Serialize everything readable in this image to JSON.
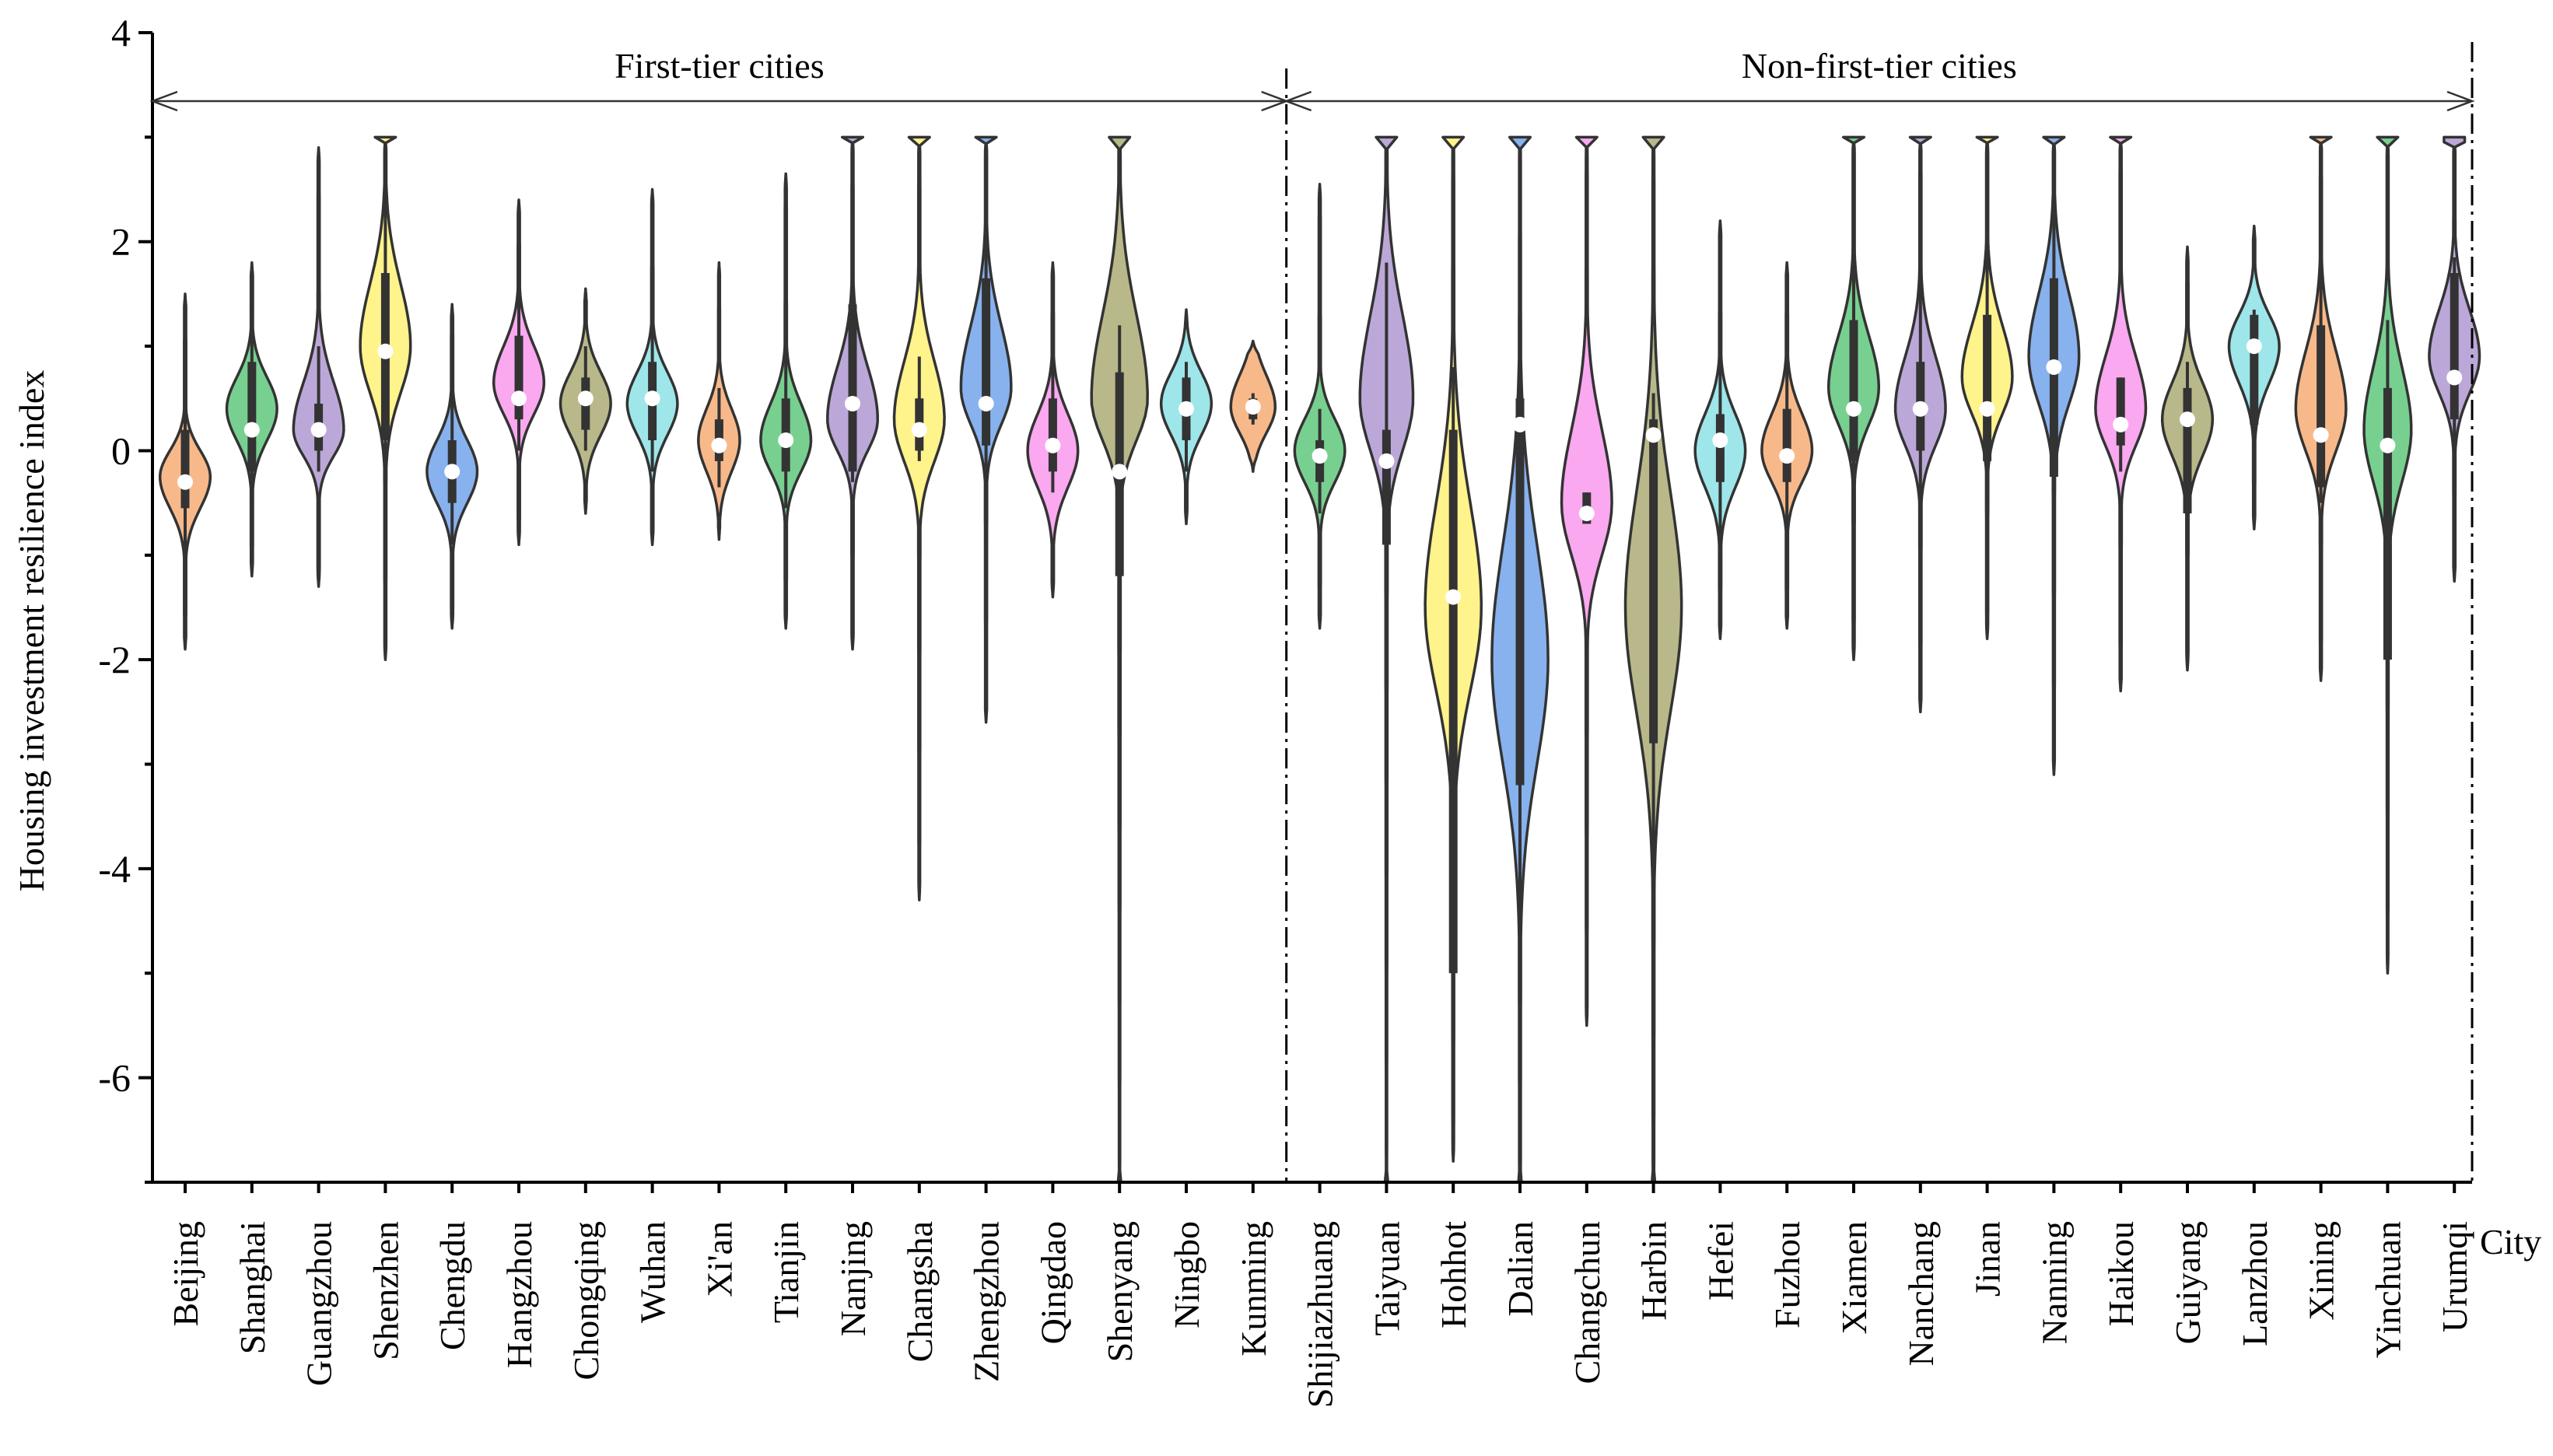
{
  "chart_data": {
    "type": "violin",
    "ylabel": "Housing investment resilience index",
    "xlabel": "City",
    "ylim": [
      -7,
      4
    ],
    "yticks": [
      4,
      2,
      0,
      -2,
      -4,
      -6
    ],
    "ytick_labels": [
      "4",
      "2",
      "0",
      "-2",
      "-4",
      "-6"
    ],
    "groups": [
      {
        "label": "First-tier cities",
        "first": 0,
        "last": 16
      },
      {
        "label": "Non-first-tier cities",
        "first": 17,
        "last": 34
      }
    ],
    "cities": [
      {
        "name": "Beijing",
        "color": "#F8B98A",
        "min": -1.9,
        "max": 1.5,
        "q1": -0.55,
        "q3": 0.2,
        "median": -0.3,
        "whisker": [
          -1.1,
          0.7
        ],
        "peak": -0.25,
        "w": 0.85,
        "wu": 0.25,
        "wl": 0.3
      },
      {
        "name": "Shanghai",
        "color": "#78D090",
        "min": -1.2,
        "max": 1.8,
        "q1": -0.2,
        "q3": 0.85,
        "median": 0.2,
        "whisker": [
          -0.5,
          1.4
        ],
        "peak": 0.4,
        "w": 0.85,
        "wu": 0.3,
        "wl": 0.3
      },
      {
        "name": "Guangzhou",
        "color": "#BCA8D8",
        "min": -1.3,
        "max": 2.9,
        "q1": 0.0,
        "q3": 0.45,
        "median": 0.2,
        "whisker": [
          -0.2,
          1.0
        ],
        "peak": 0.2,
        "w": 0.85,
        "wu": 0.45,
        "wl": 0.25
      },
      {
        "name": "Shenzhen",
        "color": "#FFF38C",
        "min": -2.0,
        "max": 3.0,
        "q1": 0.1,
        "q3": 1.7,
        "median": 0.95,
        "whisker": [
          -0.3,
          2.5
        ],
        "peak": 1.0,
        "w": 0.85,
        "wu": 0.6,
        "wl": 0.45
      },
      {
        "name": "Chengdu",
        "color": "#88B2EE",
        "min": -1.7,
        "max": 1.4,
        "q1": -0.5,
        "q3": 0.1,
        "median": -0.2,
        "whisker": [
          -0.9,
          0.6
        ],
        "peak": -0.2,
        "w": 0.85,
        "wu": 0.3,
        "wl": 0.3
      },
      {
        "name": "Hangzhou",
        "color": "#FAA8F0",
        "min": -0.9,
        "max": 2.4,
        "q1": 0.3,
        "q3": 1.1,
        "median": 0.5,
        "whisker": [
          0.0,
          1.6
        ],
        "peak": 0.65,
        "w": 0.85,
        "wu": 0.35,
        "wl": 0.3
      },
      {
        "name": "Chongqing",
        "color": "#B8B88A",
        "min": -0.6,
        "max": 1.55,
        "q1": 0.2,
        "q3": 0.7,
        "median": 0.5,
        "whisker": [
          0.0,
          1.0
        ],
        "peak": 0.45,
        "w": 0.85,
        "wu": 0.3,
        "wl": 0.3
      },
      {
        "name": "Wuhan",
        "color": "#9EE6EA",
        "min": -0.9,
        "max": 2.5,
        "q1": 0.1,
        "q3": 0.85,
        "median": 0.5,
        "whisker": [
          -0.2,
          1.7
        ],
        "peak": 0.45,
        "w": 0.85,
        "wu": 0.3,
        "wl": 0.3
      },
      {
        "name": "Xi'an",
        "color": "#F8B98A",
        "min": -0.85,
        "max": 1.8,
        "q1": -0.1,
        "q3": 0.3,
        "median": 0.05,
        "whisker": [
          -0.35,
          0.6
        ],
        "peak": 0.1,
        "w": 0.7,
        "wu": 0.3,
        "wl": 0.3
      },
      {
        "name": "Tianjin",
        "color": "#78D090",
        "min": -1.7,
        "max": 2.65,
        "q1": -0.2,
        "q3": 0.5,
        "median": 0.1,
        "whisker": [
          -0.55,
          1.1
        ],
        "peak": 0.1,
        "w": 0.85,
        "wu": 0.35,
        "wl": 0.3
      },
      {
        "name": "Nanjing",
        "color": "#BCA8D8",
        "min": -1.9,
        "max": 3.0,
        "q1": -0.2,
        "q3": 1.4,
        "median": 0.45,
        "whisker": [
          -0.3,
          2.05
        ],
        "peak": 0.3,
        "w": 0.85,
        "wu": 0.5,
        "wl": 0.3
      },
      {
        "name": "Changsha",
        "color": "#FFF38C",
        "min": -4.3,
        "max": 3.0,
        "q1": 0.0,
        "q3": 0.5,
        "median": 0.2,
        "whisker": [
          -0.1,
          0.9
        ],
        "peak": 0.3,
        "w": 0.85,
        "wu": 0.55,
        "wl": 0.4
      },
      {
        "name": "Zhengzhou",
        "color": "#88B2EE",
        "min": -2.6,
        "max": 3.0,
        "q1": 0.05,
        "q3": 1.65,
        "median": 0.45,
        "whisker": [
          -0.9,
          2.3
        ],
        "peak": 0.6,
        "w": 0.85,
        "wu": 0.6,
        "wl": 0.35
      },
      {
        "name": "Qingdao",
        "color": "#FAA8F0",
        "min": -1.4,
        "max": 1.8,
        "q1": -0.2,
        "q3": 0.5,
        "median": 0.05,
        "whisker": [
          -0.4,
          0.9
        ],
        "peak": 0.0,
        "w": 0.85,
        "wu": 0.35,
        "wl": 0.35
      },
      {
        "name": "Shenyang",
        "color": "#B8B88A",
        "min": -7.0,
        "max": 3.0,
        "q1": -1.2,
        "q3": 0.75,
        "median": -0.2,
        "whisker": [
          -1.2,
          1.2
        ],
        "peak": 0.5,
        "w": 0.95,
        "wu": 0.8,
        "wl": 0.4
      },
      {
        "name": "Ningbo",
        "color": "#9EE6EA",
        "min": -0.7,
        "max": 1.35,
        "q1": 0.1,
        "q3": 0.7,
        "median": 0.4,
        "whisker": [
          -0.2,
          0.85
        ],
        "peak": 0.45,
        "w": 0.85,
        "wu": 0.3,
        "wl": 0.3
      },
      {
        "name": "Kunming",
        "color": "#F8B98A",
        "min": -0.2,
        "max": 1.05,
        "q1": 0.3,
        "q3": 0.5,
        "median": 0.42,
        "whisker": [
          0.25,
          0.55
        ],
        "peak": 0.42,
        "w": 0.75,
        "wu": 0.3,
        "wl": 0.25
      },
      {
        "name": "Shijiazhuang",
        "color": "#78D090",
        "min": -1.7,
        "max": 2.55,
        "q1": -0.3,
        "q3": 0.1,
        "median": -0.05,
        "whisker": [
          -0.6,
          0.4
        ],
        "peak": 0.0,
        "w": 0.85,
        "wu": 0.3,
        "wl": 0.3
      },
      {
        "name": "Taiyuan",
        "color": "#BCA8D8",
        "min": -7.0,
        "max": 3.0,
        "q1": -0.9,
        "q3": 0.2,
        "median": -0.1,
        "whisker": [
          -1.4,
          1.8
        ],
        "peak": 0.5,
        "w": 0.9,
        "wu": 0.8,
        "wl": 0.5
      },
      {
        "name": "Hohhot",
        "color": "#FFF38C",
        "min": -6.8,
        "max": 3.0,
        "q1": -5.0,
        "q3": 0.2,
        "median": -1.4,
        "whisker": [
          -5.0,
          0.8
        ],
        "peak": -1.5,
        "w": 0.95,
        "wu": 1.0,
        "wl": 0.8
      },
      {
        "name": "Dalian",
        "color": "#88B2EE",
        "min": -7.0,
        "max": 3.0,
        "q1": -3.2,
        "q3": 0.5,
        "median": 0.25,
        "whisker": [
          -6.9,
          0.85
        ],
        "peak": -2.0,
        "w": 0.95,
        "wu": 1.1,
        "wl": 1.0
      },
      {
        "name": "Changchun",
        "color": "#FAA8F0",
        "min": -5.5,
        "max": 3.0,
        "q1": -0.7,
        "q3": -0.4,
        "median": -0.6,
        "whisker": [
          -0.7,
          -0.4
        ],
        "peak": -0.5,
        "w": 0.85,
        "wu": 0.7,
        "wl": 0.5
      },
      {
        "name": "Harbin",
        "color": "#B8B88A",
        "min": -7.0,
        "max": 3.0,
        "q1": -2.8,
        "q3": 0.3,
        "median": 0.15,
        "whisker": [
          -5.7,
          0.55
        ],
        "peak": -1.5,
        "w": 0.95,
        "wu": 1.1,
        "wl": 1.0
      },
      {
        "name": "Hefei",
        "color": "#9EE6EA",
        "min": -1.8,
        "max": 2.2,
        "q1": -0.3,
        "q3": 0.35,
        "median": 0.1,
        "whisker": [
          -0.85,
          1.2
        ],
        "peak": 0.0,
        "w": 0.85,
        "wu": 0.35,
        "wl": 0.35
      },
      {
        "name": "Fuzhou",
        "color": "#F8B98A",
        "min": -1.7,
        "max": 1.8,
        "q1": -0.3,
        "q3": 0.4,
        "median": -0.05,
        "whisker": [
          -0.9,
          0.9
        ],
        "peak": 0.0,
        "w": 0.85,
        "wu": 0.35,
        "wl": 0.3
      },
      {
        "name": "Xiamen",
        "color": "#78D090",
        "min": -2.0,
        "max": 3.0,
        "q1": -0.1,
        "q3": 1.25,
        "median": 0.4,
        "whisker": [
          -0.4,
          2.2
        ],
        "peak": 0.6,
        "w": 0.85,
        "wu": 0.5,
        "wl": 0.35
      },
      {
        "name": "Nanchang",
        "color": "#BCA8D8",
        "min": -2.5,
        "max": 3.0,
        "q1": 0.0,
        "q3": 0.85,
        "median": 0.4,
        "whisker": [
          -0.9,
          1.8
        ],
        "peak": 0.4,
        "w": 0.85,
        "wu": 0.5,
        "wl": 0.35
      },
      {
        "name": "Jinan",
        "color": "#FFF38C",
        "min": -1.8,
        "max": 3.0,
        "q1": -0.1,
        "q3": 1.3,
        "median": 0.4,
        "whisker": [
          -0.5,
          1.95
        ],
        "peak": 0.7,
        "w": 0.85,
        "wu": 0.5,
        "wl": 0.35
      },
      {
        "name": "Nanning",
        "color": "#88B2EE",
        "min": -3.1,
        "max": 3.0,
        "q1": -0.25,
        "q3": 1.65,
        "median": 0.8,
        "whisker": [
          -0.95,
          2.75
        ],
        "peak": 0.9,
        "w": 0.85,
        "wu": 0.6,
        "wl": 0.45
      },
      {
        "name": "Haikou",
        "color": "#FAA8F0",
        "min": -2.3,
        "max": 3.0,
        "q1": 0.05,
        "q3": 0.7,
        "median": 0.25,
        "whisker": [
          -0.2,
          0.7
        ],
        "peak": 0.4,
        "w": 0.85,
        "wu": 0.5,
        "wl": 0.35
      },
      {
        "name": "Guiyang",
        "color": "#B8B88A",
        "min": -2.1,
        "max": 1.95,
        "q1": -0.6,
        "q3": 0.6,
        "median": 0.3,
        "whisker": [
          -0.95,
          0.85
        ],
        "peak": 0.3,
        "w": 0.85,
        "wu": 0.35,
        "wl": 0.35
      },
      {
        "name": "Lanzhou",
        "color": "#9EE6EA",
        "min": -0.75,
        "max": 2.15,
        "q1": 0.25,
        "q3": 1.3,
        "median": 1.0,
        "whisker": [
          0.0,
          1.35
        ],
        "peak": 1.0,
        "w": 0.85,
        "wu": 0.3,
        "wl": 0.35
      },
      {
        "name": "Xining",
        "color": "#F8B98A",
        "min": -2.2,
        "max": 3.0,
        "q1": -0.35,
        "q3": 1.2,
        "median": 0.15,
        "whisker": [
          -0.5,
          2.1
        ],
        "peak": 0.4,
        "w": 0.85,
        "wu": 0.55,
        "wl": 0.4
      },
      {
        "name": "Yinchuan",
        "color": "#78D090",
        "min": -5.0,
        "max": 3.0,
        "q1": -2.0,
        "q3": 0.6,
        "median": 0.05,
        "whisker": [
          -2.7,
          1.25
        ],
        "peak": 0.2,
        "w": 0.8,
        "wu": 0.6,
        "wl": 0.5
      },
      {
        "name": "Urumqi",
        "color": "#BCA8D8",
        "min": -1.25,
        "max": 3.0,
        "q1": 0.3,
        "q3": 1.7,
        "median": 0.7,
        "whisker": [
          0.0,
          1.85
        ],
        "peak": 0.9,
        "w": 0.85,
        "wu": 0.45,
        "wl": 0.35
      }
    ]
  }
}
